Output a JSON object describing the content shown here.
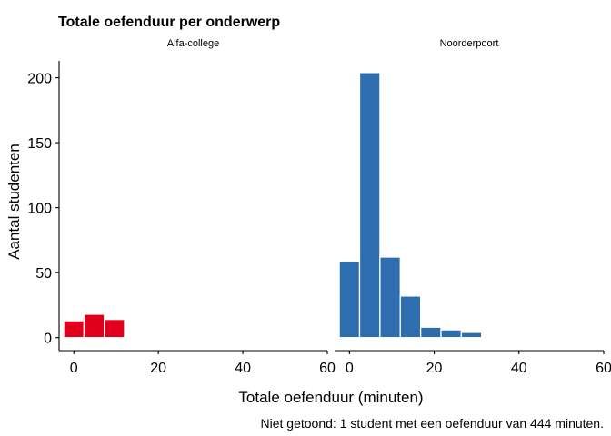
{
  "chart_data": {
    "type": "bar",
    "title": "Totale oefenduur per onderwerp",
    "xlabel": "Totale oefenduur (minuten)",
    "ylabel": "Aantal studenten",
    "caption": "Niet getoond: 1 student met een oefenduur van 444 minuten.",
    "xlim": [
      -3.5,
      60
    ],
    "ylim": [
      -10,
      213
    ],
    "x_ticks": [
      0,
      20,
      40,
      60
    ],
    "y_ticks": [
      0,
      50,
      100,
      150,
      200
    ],
    "bin_width": 4.8,
    "grid": false,
    "legend": "none",
    "panels": [
      {
        "name": "Alfa-college",
        "color": "#E0001B",
        "bin_centers": [
          0,
          4.8,
          9.6,
          14.4,
          19.2,
          24,
          28.8,
          33.6,
          38.4,
          43.2,
          48,
          52.8,
          57.6
        ],
        "values": [
          13,
          18,
          14,
          0.3,
          0,
          0,
          0,
          0,
          0,
          0,
          0,
          0,
          0
        ]
      },
      {
        "name": "Noorderpoort",
        "color": "#2E6DB0",
        "bin_centers": [
          0,
          4.8,
          9.6,
          14.4,
          19.2,
          24,
          28.8,
          33.6,
          38.4,
          43.2,
          48,
          52.8,
          57.6
        ],
        "values": [
          59,
          204,
          62,
          32,
          8,
          6,
          4,
          0,
          0,
          0.3,
          0,
          0,
          0.3
        ]
      }
    ]
  }
}
